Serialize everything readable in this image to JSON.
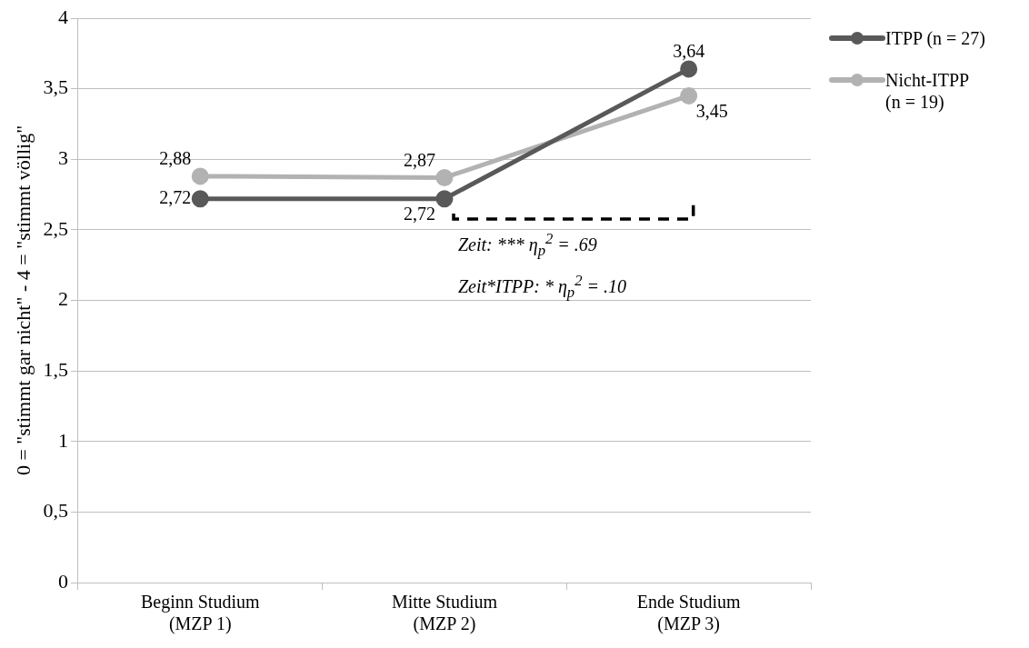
{
  "chart_data": {
    "type": "line",
    "ylabel": "0 = \"stimmt gar nicht\" - 4 = \"stimmt völlig\"",
    "categories": [
      "Beginn Studium\n(MZP 1)",
      "Mitte Studium\n(MZP 2)",
      "Ende Studium\n(MZP 3)"
    ],
    "series": [
      {
        "name": "ITPP (n = 27)",
        "color": "#595959",
        "values": [
          2.72,
          2.72,
          3.64
        ],
        "value_labels": [
          "2,72",
          "2,72",
          "3,64"
        ]
      },
      {
        "name": "Nicht-ITPP (n = 19)",
        "color": "#b2b2b2",
        "values": [
          2.88,
          2.87,
          3.45
        ],
        "value_labels": [
          "2,88",
          "2,87",
          "3,45"
        ]
      }
    ],
    "ylim": [
      0,
      4
    ],
    "yticks": [
      0,
      {
        "value": 0.5,
        "label": "0,5"
      },
      1,
      {
        "value": 1.5,
        "label": "1,5"
      },
      2,
      {
        "value": 2.5,
        "label": "2,5"
      },
      3,
      {
        "value": 3.5,
        "label": "3,5"
      },
      4
    ],
    "annotations": [
      "Zeit: *** η$_{p}$$^{2}$ = .69",
      "Zeit*ITPP: * η$_{p}$$^{2}$ = .10"
    ],
    "grid": "y",
    "legend": "right",
    "marker": "circle",
    "line_style": "solid"
  }
}
